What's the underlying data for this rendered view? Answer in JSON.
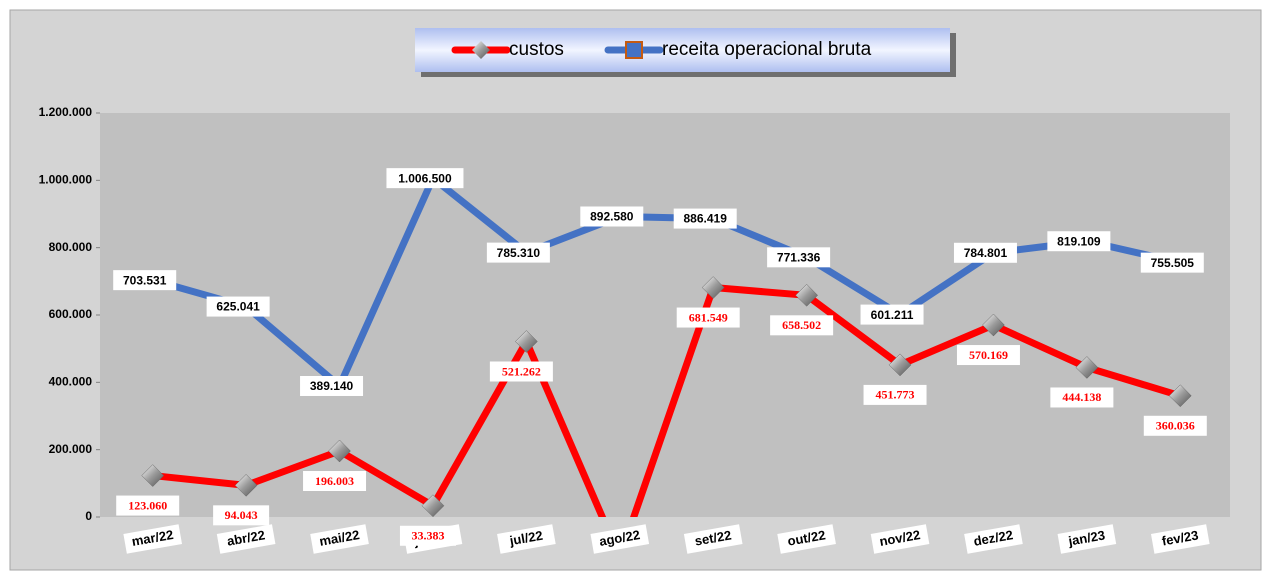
{
  "chart_data": {
    "type": "line",
    "categories": [
      "mar/22",
      "abr/22",
      "mai/22",
      "jun/22",
      "jul/22",
      "ago/22",
      "set/22",
      "out/22",
      "nov/22",
      "dez/22",
      "jan/23",
      "fev/23"
    ],
    "series": [
      {
        "name": "custos",
        "color": "#ff0000",
        "values": [
          123060,
          94043,
          196003,
          33383,
          521262,
          -120000,
          681549,
          658502,
          451773,
          570169,
          444138,
          360036
        ],
        "value_labels": [
          "123.060",
          "94.043",
          "196.003",
          "33.383",
          "521.262",
          null,
          "681.549",
          "658.502",
          "451.773",
          "570.169",
          "444.138",
          "360.036"
        ]
      },
      {
        "name": "receita operacional bruta",
        "color": "#4472c4",
        "values": [
          703531,
          625041,
          389140,
          1006500,
          785310,
          892580,
          886419,
          771336,
          601211,
          784801,
          819109,
          755505
        ],
        "value_labels": [
          "703.531",
          "625.041",
          "389.140",
          "1.006.500",
          "785.310",
          "892.580",
          "886.419",
          "771.336",
          "601.211",
          "784.801",
          "819.109",
          "755.505"
        ]
      }
    ],
    "ylim": [
      0,
      1200000
    ],
    "yticks": [
      0,
      {
        "value": 200000,
        "label": "200.000"
      },
      {
        "value": 400000,
        "label": "400.000"
      },
      {
        "value": 600000,
        "label": "600.000"
      },
      {
        "value": 800000,
        "label": "800.000"
      },
      {
        "value": 1000000,
        "label": "1.000.000"
      },
      {
        "value": 1200000,
        "label": "1.200.000"
      }
    ]
  }
}
